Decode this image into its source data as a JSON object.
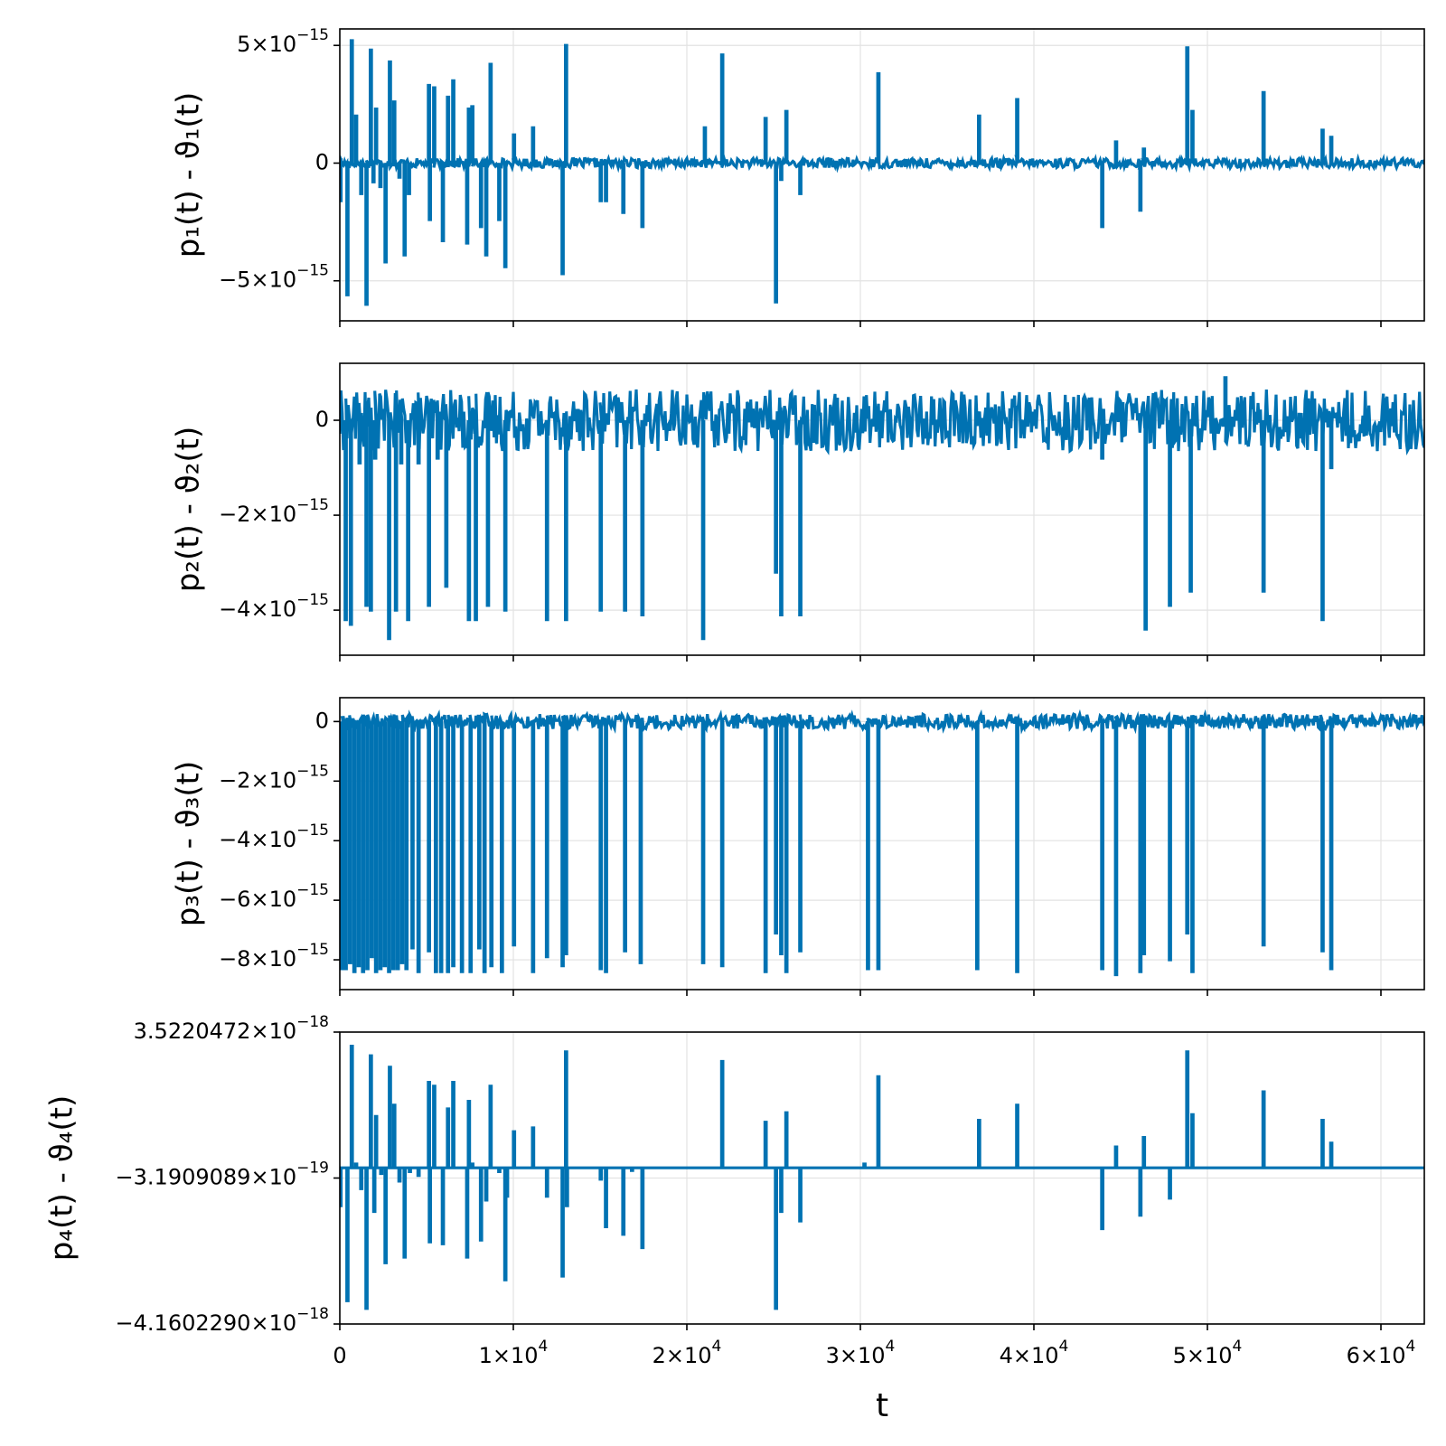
{
  "chart_data": [
    {
      "type": "line",
      "ylabel": "p₁(t) - ϑ₁(t)",
      "xlim": [
        0,
        62500
      ],
      "ylim": [
        -6.7e-15,
        5.7e-15
      ],
      "yticks": [
        {
          "value": 5e-15,
          "mant": "5",
          "exp": "−15"
        },
        {
          "value": 0,
          "mant": "0",
          "exp": ""
        },
        {
          "value": -5e-15,
          "mant": "−5",
          "exp": "−15"
        }
      ],
      "noise": 2e-16,
      "baseline": 0,
      "series": [
        {
          "color": "#0072b2",
          "spikes": [
            [
              0,
              -1.6e-15
            ],
            [
              400,
              -5.6e-15
            ],
            [
              650,
              5.2e-15
            ],
            [
              900,
              2e-15
            ],
            [
              1200,
              -1.3e-15
            ],
            [
              1500,
              -6e-15
            ],
            [
              1750,
              4.8e-15
            ],
            [
              1900,
              -8e-16
            ],
            [
              2050,
              2.3e-15
            ],
            [
              2300,
              -1e-15
            ],
            [
              2600,
              -4.2e-15
            ],
            [
              2850,
              4.3e-15
            ],
            [
              3100,
              2.6e-15
            ],
            [
              3400,
              -6e-16
            ],
            [
              3700,
              -3.9e-15
            ],
            [
              3950,
              -1.3e-15
            ],
            [
              5100,
              3.3e-15
            ],
            [
              5150,
              -2.4e-15
            ],
            [
              5400,
              3.2e-15
            ],
            [
              5900,
              -3.3e-15
            ],
            [
              6200,
              2.8e-15
            ],
            [
              6500,
              3.5e-15
            ],
            [
              7300,
              -3.4e-15
            ],
            [
              7400,
              2.3e-15
            ],
            [
              7600,
              2.4e-15
            ],
            [
              8100,
              -2.7e-15
            ],
            [
              8400,
              -3.9e-15
            ],
            [
              8650,
              4.2e-15
            ],
            [
              9150,
              -2.4e-15
            ],
            [
              9500,
              -4.4e-15
            ],
            [
              10000,
              1.2e-15
            ],
            [
              11100,
              1.5e-15
            ],
            [
              12800,
              -4.7e-15
            ],
            [
              13000,
              5e-15
            ],
            [
              15000,
              -1.6e-15
            ],
            [
              15300,
              -1.6e-15
            ],
            [
              16300,
              -2.1e-15
            ],
            [
              17400,
              -2.7e-15
            ],
            [
              21000,
              1.5e-15
            ],
            [
              22000,
              4.6e-15
            ],
            [
              24500,
              1.9e-15
            ],
            [
              25100,
              -5.9e-15
            ],
            [
              25400,
              -7e-16
            ],
            [
              25700,
              2.2e-15
            ],
            [
              26500,
              -1.3e-15
            ],
            [
              31000,
              3.8e-15
            ],
            [
              36800,
              2e-15
            ],
            [
              39000,
              2.7e-15
            ],
            [
              43900,
              -2.7e-15
            ],
            [
              44700,
              9e-16
            ],
            [
              46100,
              -2e-15
            ],
            [
              46300,
              6e-16
            ],
            [
              48800,
              4.9e-15
            ],
            [
              49100,
              2.2e-15
            ],
            [
              53200,
              3e-15
            ],
            [
              56600,
              1.4e-15
            ],
            [
              57100,
              1.1e-15
            ]
          ]
        }
      ]
    },
    {
      "type": "line",
      "ylabel": "p₂(t) - ϑ₂(t)",
      "xlim": [
        0,
        62500
      ],
      "ylim": [
        -4.95e-15,
        1.2e-15
      ],
      "yticks": [
        {
          "value": 0,
          "mant": "0",
          "exp": ""
        },
        {
          "value": -2e-15,
          "mant": "−2",
          "exp": "−15"
        },
        {
          "value": -4e-15,
          "mant": "−4",
          "exp": "−15"
        }
      ],
      "noise": 6.5e-16,
      "baseline": 0,
      "series": [
        {
          "color": "#0072b2",
          "spikes": [
            [
              300,
              -4.2e-15
            ],
            [
              600,
              -4.3e-15
            ],
            [
              1100,
              -9e-16
            ],
            [
              1500,
              -3.9e-15
            ],
            [
              1750,
              -4e-15
            ],
            [
              2000,
              -8e-16
            ],
            [
              2800,
              -4.6e-15
            ],
            [
              3200,
              -4e-15
            ],
            [
              3500,
              -9e-16
            ],
            [
              3900,
              -4.2e-15
            ],
            [
              4500,
              -9e-16
            ],
            [
              5100,
              -3.9e-15
            ],
            [
              5600,
              -8e-16
            ],
            [
              6100,
              -3.5e-15
            ],
            [
              7400,
              -4.2e-15
            ],
            [
              7800,
              -4.2e-15
            ],
            [
              8500,
              -3.9e-15
            ],
            [
              9500,
              -4e-15
            ],
            [
              11900,
              -4.2e-15
            ],
            [
              13000,
              -4.2e-15
            ],
            [
              15000,
              -4e-15
            ],
            [
              16400,
              -4e-15
            ],
            [
              17400,
              -4.1e-15
            ],
            [
              20900,
              -4.6e-15
            ],
            [
              25100,
              -3.2e-15
            ],
            [
              25400,
              -4.1e-15
            ],
            [
              26500,
              -4.1e-15
            ],
            [
              43900,
              -8e-16
            ],
            [
              46400,
              -4.4e-15
            ],
            [
              47800,
              -3.9e-15
            ],
            [
              49000,
              -3.6e-15
            ],
            [
              53200,
              -3.6e-15
            ],
            [
              56600,
              -4.2e-15
            ],
            [
              57100,
              -1e-15
            ],
            [
              51000,
              9e-16
            ]
          ]
        }
      ]
    },
    {
      "type": "line",
      "ylabel": "p₃(t) - ϑ₃(t)",
      "xlim": [
        0,
        62500
      ],
      "ylim": [
        -9e-15,
        8e-16
      ],
      "yticks": [
        {
          "value": 0,
          "mant": "0",
          "exp": ""
        },
        {
          "value": -2e-15,
          "mant": "−2",
          "exp": "−15"
        },
        {
          "value": -4e-15,
          "mant": "−4",
          "exp": "−15"
        },
        {
          "value": -6e-15,
          "mant": "−6",
          "exp": "−15"
        },
        {
          "value": -8e-15,
          "mant": "−8",
          "exp": "−15"
        }
      ],
      "noise": 2.5e-16,
      "baseline": 0,
      "series": [
        {
          "color": "#0072b2",
          "spikes": [
            [
              100,
              -8.3e-15
            ],
            [
              300,
              -8.3e-15
            ],
            [
              550,
              -8.1e-15
            ],
            [
              800,
              -8.4e-15
            ],
            [
              1050,
              -8.2e-15
            ],
            [
              1300,
              -8.4e-15
            ],
            [
              1550,
              -8.3e-15
            ],
            [
              1800,
              -7.9e-15
            ],
            [
              2050,
              -8.4e-15
            ],
            [
              2300,
              -8.3e-15
            ],
            [
              2550,
              -8.2e-15
            ],
            [
              2800,
              -8.4e-15
            ],
            [
              3050,
              -8.3e-15
            ],
            [
              3300,
              -8.3e-15
            ],
            [
              3550,
              -8.1e-15
            ],
            [
              3800,
              -8.3e-15
            ],
            [
              4150,
              -7.6e-15
            ],
            [
              4500,
              -8.4e-15
            ],
            [
              5100,
              -7.7e-15
            ],
            [
              5500,
              -8.4e-15
            ],
            [
              5800,
              -8.4e-15
            ],
            [
              6200,
              -8.4e-15
            ],
            [
              6500,
              -8.2e-15
            ],
            [
              7000,
              -8.4e-15
            ],
            [
              7500,
              -8.4e-15
            ],
            [
              8000,
              -7.6e-15
            ],
            [
              8300,
              -8.4e-15
            ],
            [
              8700,
              -8.2e-15
            ],
            [
              9300,
              -8.4e-15
            ],
            [
              10000,
              -7.5e-15
            ],
            [
              11100,
              -8.4e-15
            ],
            [
              11900,
              -7.9e-15
            ],
            [
              12800,
              -8.2e-15
            ],
            [
              13000,
              -7.8e-15
            ],
            [
              15000,
              -8.3e-15
            ],
            [
              15300,
              -8.4e-15
            ],
            [
              16400,
              -7.7e-15
            ],
            [
              17300,
              -8.1e-15
            ],
            [
              20900,
              -8.1e-15
            ],
            [
              22000,
              -8.2e-15
            ],
            [
              24500,
              -8.4e-15
            ],
            [
              25100,
              -7.1e-15
            ],
            [
              25400,
              -7.8e-15
            ],
            [
              25700,
              -8.4e-15
            ],
            [
              26500,
              -7.7e-15
            ],
            [
              30400,
              -8.3e-15
            ],
            [
              31000,
              -8.3e-15
            ],
            [
              36700,
              -8.3e-15
            ],
            [
              39000,
              -8.4e-15
            ],
            [
              43900,
              -8.3e-15
            ],
            [
              44700,
              -8.5e-15
            ],
            [
              46100,
              -8.4e-15
            ],
            [
              46300,
              -7.8e-15
            ],
            [
              47800,
              -8e-15
            ],
            [
              48800,
              -7.1e-15
            ],
            [
              49100,
              -8.4e-15
            ],
            [
              53200,
              -7.5e-15
            ],
            [
              56600,
              -7.7e-15
            ],
            [
              57100,
              -8.3e-15
            ]
          ]
        }
      ]
    },
    {
      "type": "line",
      "ylabel": "p₄(t) - ϑ₄(t)",
      "xlabel": "t",
      "xlim": [
        0,
        62500
      ],
      "ylim": [
        -4.160229e-18,
        3.5220472e-18
      ],
      "yticks": [
        {
          "value": 3.5220472e-18,
          "mant": "3.5220472",
          "exp": "−18"
        },
        {
          "value": -3.1909089e-19,
          "mant": "−3.1909089",
          "exp": "−19"
        },
        {
          "value": -4.160229e-18,
          "mant": "−4.1602290",
          "exp": "−18"
        }
      ],
      "xticks": [
        {
          "value": 0,
          "mant": "0",
          "exp": ""
        },
        {
          "value": 10000,
          "mant": "1",
          "exp": "4"
        },
        {
          "value": 20000,
          "mant": "2",
          "exp": "4"
        },
        {
          "value": 30000,
          "mant": "3",
          "exp": "4"
        },
        {
          "value": 40000,
          "mant": "4",
          "exp": "4"
        },
        {
          "value": 50000,
          "mant": "5",
          "exp": "4"
        },
        {
          "value": 60000,
          "mant": "6",
          "exp": "4"
        }
      ],
      "noise": 0,
      "baseline": -5e-20,
      "series": [
        {
          "color": "#0072b2",
          "spikes": [
            [
              0,
              -1.05e-18
            ],
            [
              400,
              -3.55e-18
            ],
            [
              650,
              3.15e-18
            ],
            [
              900,
              5e-20
            ],
            [
              1200,
              -6e-19
            ],
            [
              1500,
              -3.75e-18
            ],
            [
              1750,
              2.9e-18
            ],
            [
              1950,
              -1.2e-18
            ],
            [
              2050,
              1.3e-18
            ],
            [
              2350,
              -2e-19
            ],
            [
              2600,
              -2.55e-18
            ],
            [
              2850,
              2.6e-18
            ],
            [
              3100,
              1.6e-18
            ],
            [
              3400,
              -4e-19
            ],
            [
              3700,
              -2.4e-18
            ],
            [
              4000,
              -1.5e-19
            ],
            [
              4500,
              -2.5e-19
            ],
            [
              5100,
              2.2e-18
            ],
            [
              5150,
              -2e-18
            ],
            [
              5400,
              2.1e-18
            ],
            [
              5900,
              -2.05e-18
            ],
            [
              6200,
              1.5e-18
            ],
            [
              6500,
              2.2e-18
            ],
            [
              7300,
              -2.4e-18
            ],
            [
              7400,
              1.7e-18
            ],
            [
              7600,
              5e-20
            ],
            [
              8100,
              -1.95e-18
            ],
            [
              8400,
              -9e-19
            ],
            [
              8650,
              2.1e-18
            ],
            [
              9150,
              -1.5e-19
            ],
            [
              9500,
              -3e-18
            ],
            [
              9600,
              -8e-19
            ],
            [
              10000,
              9e-19
            ],
            [
              11100,
              1e-18
            ],
            [
              11900,
              -8e-19
            ],
            [
              12800,
              -2.9e-18
            ],
            [
              13000,
              3e-18
            ],
            [
              13050,
              -1.05e-18
            ],
            [
              15000,
              -3.5e-19
            ],
            [
              15300,
              -1.6e-18
            ],
            [
              16300,
              -1.8e-18
            ],
            [
              16800,
              -1.2e-19
            ],
            [
              17400,
              -2.15e-18
            ],
            [
              22000,
              2.75e-18
            ],
            [
              24500,
              1.15e-18
            ],
            [
              25100,
              -3.75e-18
            ],
            [
              25400,
              -1.2e-18
            ],
            [
              25700,
              1.4e-18
            ],
            [
              26500,
              -1.45e-18
            ],
            [
              30200,
              5e-20
            ],
            [
              31000,
              2.35e-18
            ],
            [
              36800,
              1.2e-18
            ],
            [
              39000,
              1.6e-18
            ],
            [
              43900,
              -1.65e-18
            ],
            [
              44700,
              5e-19
            ],
            [
              46100,
              -1.3e-18
            ],
            [
              46300,
              7.5e-19
            ],
            [
              47800,
              -8.5e-19
            ],
            [
              48800,
              3e-18
            ],
            [
              49100,
              1.35e-18
            ],
            [
              53200,
              1.95e-18
            ],
            [
              56600,
              1.2e-18
            ],
            [
              57100,
              6e-19
            ]
          ]
        }
      ]
    }
  ]
}
